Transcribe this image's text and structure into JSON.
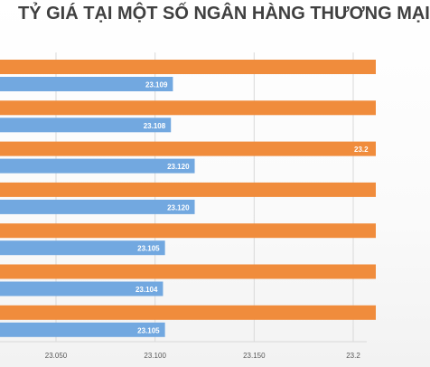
{
  "title": "TỶ GIÁ TẠI MỘT SỐ NGÂN HÀNG THƯƠNG MẠI",
  "chart_data": {
    "type": "bar",
    "orientation": "horizontal",
    "grid": true,
    "xlim": [
      23025,
      23200
    ],
    "x_ticks": [
      "23.050",
      "23.100",
      "23.150",
      "23.2"
    ],
    "series": [
      {
        "color": "#f08c3c",
        "values": [
          null,
          null,
          23200,
          null,
          null,
          null,
          null
        ],
        "labels": [
          "",
          "",
          "23.2",
          "",
          "",
          "",
          ""
        ]
      },
      {
        "color": "#72a8e0",
        "values": [
          23109,
          23108,
          23120,
          23120,
          23105,
          23104,
          23105
        ],
        "labels": [
          "23.109",
          "23.108",
          "23.120",
          "23.120",
          "23.105",
          "23.104",
          "23.105"
        ]
      }
    ]
  }
}
